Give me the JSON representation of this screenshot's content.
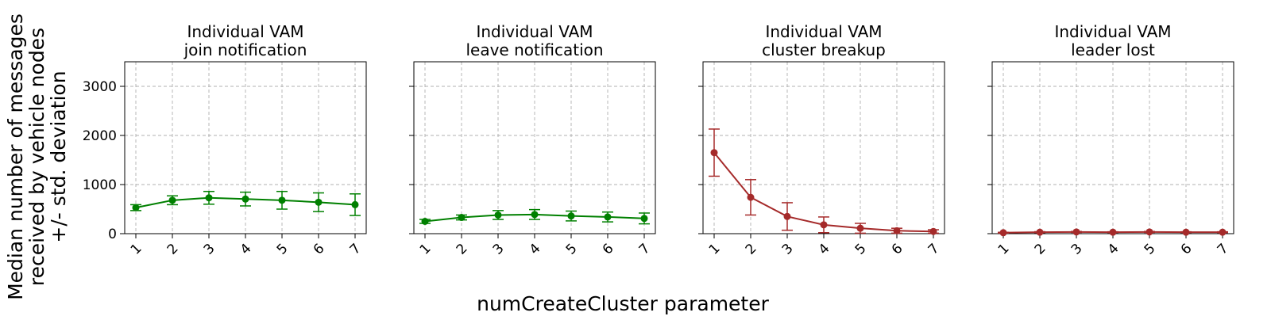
{
  "figure": {
    "ylabel_lines": [
      "Median number of messages",
      "received by vehicle nodes",
      "+/- std. deviation"
    ],
    "xlabel": "numCreateCluster parameter"
  },
  "chart_data": [
    {
      "type": "line",
      "title_lines": [
        "Individual VAM",
        "join notification"
      ],
      "color": "#008000",
      "x": [
        1,
        2,
        3,
        4,
        5,
        6,
        7
      ],
      "x_ticks": [
        "1",
        "2",
        "3",
        "4",
        "5",
        "6",
        "7"
      ],
      "y_ticks": [
        "0",
        "1000",
        "2000",
        "3000"
      ],
      "ylim": [
        0,
        3500
      ],
      "grid": true,
      "values": [
        530,
        680,
        730,
        705,
        680,
        640,
        590
      ],
      "errors": [
        60,
        90,
        130,
        140,
        180,
        190,
        220
      ]
    },
    {
      "type": "line",
      "title_lines": [
        "Individual VAM",
        "leave notification"
      ],
      "color": "#008000",
      "x": [
        1,
        2,
        3,
        4,
        5,
        6,
        7
      ],
      "x_ticks": [
        "1",
        "2",
        "3",
        "4",
        "5",
        "6",
        "7"
      ],
      "y_ticks": [
        "0",
        "1000",
        "2000",
        "3000"
      ],
      "ylim": [
        0,
        3500
      ],
      "grid": true,
      "values": [
        250,
        330,
        380,
        390,
        360,
        340,
        310
      ],
      "errors": [
        40,
        50,
        90,
        100,
        100,
        100,
        110
      ]
    },
    {
      "type": "line",
      "title_lines": [
        "Individual VAM",
        "cluster breakup"
      ],
      "color": "#a52a2a",
      "x": [
        1,
        2,
        3,
        4,
        5,
        6,
        7
      ],
      "x_ticks": [
        "1",
        "2",
        "3",
        "4",
        "5",
        "6",
        "7"
      ],
      "y_ticks": [
        "0",
        "1000",
        "2000",
        "3000"
      ],
      "ylim": [
        0,
        3500
      ],
      "grid": true,
      "values": [
        1650,
        740,
        350,
        180,
        110,
        60,
        45
      ],
      "errors": [
        480,
        360,
        280,
        160,
        100,
        50,
        35
      ]
    },
    {
      "type": "line",
      "title_lines": [
        "Individual VAM",
        "leader lost"
      ],
      "color": "#a52a2a",
      "x": [
        1,
        2,
        3,
        4,
        5,
        6,
        7
      ],
      "x_ticks": [
        "1",
        "2",
        "3",
        "4",
        "5",
        "6",
        "7"
      ],
      "y_ticks": [
        "0",
        "1000",
        "2000",
        "3000"
      ],
      "ylim": [
        0,
        3500
      ],
      "grid": true,
      "values": [
        20,
        30,
        35,
        30,
        35,
        30,
        30
      ],
      "errors": [
        8,
        10,
        10,
        8,
        10,
        8,
        8
      ]
    }
  ]
}
